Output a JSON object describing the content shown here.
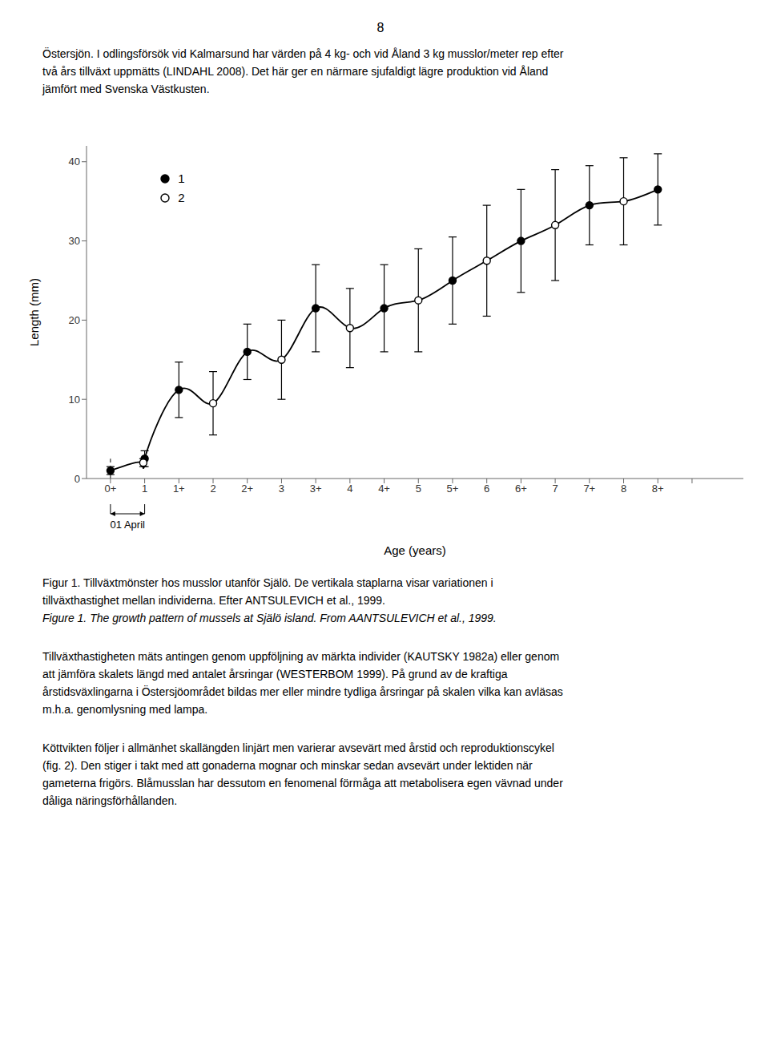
{
  "page_text": {
    "header": "8",
    "paragraphs_before": [
      [
        "Östersjön. I odlingsförsök vid Kalmarsund har värden på 4 kg- och vid Åland 3 kg musslor/meter rep efter",
        "två års tillväxt uppmätts (LINDAHL 2008). Det här ger en närmare sjufaldigt lägre produktion vid Åland",
        "jämfört med Svenska Västkusten."
      ]
    ],
    "captions": [
      "Figur 1.  Tillväxtmönster hos musslor utanför Själö.  De vertikala staplarna visar variationen i",
      "tillväxthastighet mellan individerna. Efter ANTSULEVICH et al., 1999."
    ],
    "caption_italic": "Figure 1.  The growth pattern of mussels at Själö island.  From AANTSULEVICH et al., 1999.",
    "paragraphs_after": [
      [
        "Tillväxthastigheten mäts antingen genom uppföljning av märkta individer (KAUTSKY 1982a) eller genom",
        "att jämföra skalets längd med antalet årsringar (WESTERBOM 1999). På grund av de kraftiga",
        "årstidsväxlingarna i Östersjöområdet bildas mer eller mindre tydliga årsringar på skalen vilka kan avläsas",
        "m.h.a. genomlysning med lampa."
      ],
      [
        "Köttvikten följer i allmänhet skallängden linjärt men varierar avsevärt med årstid och reproduktionscykel",
        "(fig. 2). Den stiger i takt med att gonaderna mognar och minskar sedan avsevärt under lektiden när",
        "gameterna frigörs. Blåmusslan har dessutom en fenomenal förmåga att metabolisera egen vävnad under",
        "dåliga näringsförhållanden."
      ]
    ]
  },
  "chart_data": {
    "type": "scatter",
    "ylabel": "Length (mm)",
    "xlabel": "Age (years)",
    "xlim": [
      -0.3,
      9.3
    ],
    "ylim": [
      0,
      42
    ],
    "yticks": [
      0,
      10,
      20,
      30,
      40
    ],
    "xticks": [
      {
        "value": 0.05,
        "label": "0+"
      },
      {
        "value": 0.55,
        "label": "1"
      },
      {
        "value": 1.05,
        "label": "1+"
      },
      {
        "value": 1.55,
        "label": "2"
      },
      {
        "value": 2.05,
        "label": "2+"
      },
      {
        "value": 2.55,
        "label": "3"
      },
      {
        "value": 3.05,
        "label": "3+"
      },
      {
        "value": 3.55,
        "label": "4"
      },
      {
        "value": 4.05,
        "label": "4+"
      },
      {
        "value": 4.55,
        "label": "5"
      },
      {
        "value": 5.05,
        "label": "5+"
      },
      {
        "value": 5.55,
        "label": "6"
      },
      {
        "value": 6.05,
        "label": "6+"
      },
      {
        "value": 6.55,
        "label": "7"
      },
      {
        "value": 7.05,
        "label": "7+"
      },
      {
        "value": 7.55,
        "label": "8"
      },
      {
        "value": 8.05,
        "label": "8+"
      },
      {
        "value": 8.55,
        "label": ""
      }
    ],
    "grid": false,
    "legend": "upper left",
    "series": [
      {
        "type": "line",
        "color": "#000000",
        "line_style": "solid",
        "x": [
          0.05,
          0.53,
          0.55,
          1.05,
          1.55,
          2.05,
          2.55,
          3.05,
          3.55,
          4.05,
          4.55,
          5.05,
          5.55,
          6.05,
          6.55,
          7.05,
          7.55,
          8.05
        ],
        "values": [
          1.0,
          2.0,
          2.5,
          11.2,
          9.5,
          16.0,
          15.0,
          21.5,
          19.0,
          21.5,
          22.5,
          25.0,
          27.5,
          30.0,
          32.0,
          34.5,
          35.0,
          36.5
        ]
      },
      {
        "name": "1",
        "type": "scatter",
        "color": "#000000",
        "marker": "circle",
        "x": [
          0.05,
          0.55,
          1.05,
          2.05,
          3.05,
          4.05,
          5.05,
          6.05,
          7.05,
          8.05
        ],
        "values": [
          1.0,
          2.5,
          11.2,
          16.0,
          21.5,
          21.5,
          25.0,
          30.0,
          34.5,
          36.5
        ],
        "error_low": [
          0.5,
          1.0,
          3.5,
          3.5,
          5.5,
          5.5,
          5.5,
          6.5,
          5.0,
          4.5
        ],
        "error_high": [
          0.5,
          1.0,
          3.5,
          3.5,
          5.5,
          5.5,
          5.5,
          6.5,
          5.0,
          4.5
        ]
      },
      {
        "name": "2",
        "type": "scatter",
        "color": "#000000",
        "marker": "open_circle",
        "x": [
          0.53,
          1.55,
          2.55,
          3.55,
          4.55,
          5.55,
          6.55,
          7.55
        ],
        "values": [
          2.0,
          9.5,
          15.0,
          19.0,
          22.5,
          27.5,
          32.0,
          35.0
        ],
        "error_low": [
          0.5,
          4.0,
          5.0,
          5.0,
          6.5,
          7.0,
          7.0,
          5.5
        ],
        "error_high": [
          0.5,
          4.0,
          5.0,
          5.0,
          6.5,
          7.0,
          7.0,
          5.5
        ]
      }
    ],
    "annotations": [
      {
        "type": "line",
        "x": [
          0.05,
          0.05
        ],
        "y": [
          0,
          2.5
        ],
        "line_style": "dashed",
        "color": "#000000"
      },
      {
        "type": "bracket",
        "text": "01 April",
        "x": [
          0.05,
          0.55
        ]
      }
    ]
  }
}
